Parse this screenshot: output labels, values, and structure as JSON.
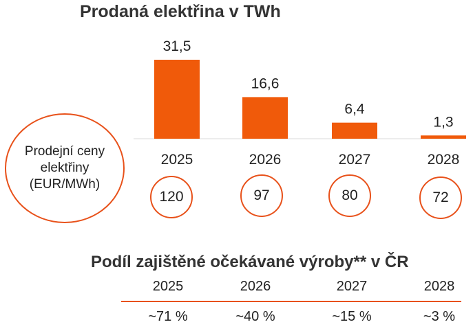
{
  "chart_title": "Prodaná elektřina v TWh",
  "chart_data": {
    "type": "bar",
    "title": "Prodaná elektřina v TWh",
    "categories": [
      "2025",
      "2026",
      "2027",
      "2028"
    ],
    "values": [
      31.5,
      16.6,
      6.4,
      1.3
    ],
    "value_labels": [
      "31,5",
      "16,6",
      "6,4",
      "1,3"
    ],
    "ylim": [
      0,
      31.5
    ],
    "grid": false,
    "bar_color": "#f05a0a"
  },
  "prices": {
    "label": "Prodejní ceny elektřiny (EUR/MWh)",
    "values": [
      "120",
      "97",
      "80",
      "72"
    ]
  },
  "hedge": {
    "title": "Podíl zajištěné očekávané výroby** v ČR",
    "years": [
      "2025",
      "2026",
      "2027",
      "2028"
    ],
    "values": [
      "~71 %",
      "~40 %",
      "~15 %",
      "~3 %"
    ],
    "line_color": "#e8511a"
  }
}
